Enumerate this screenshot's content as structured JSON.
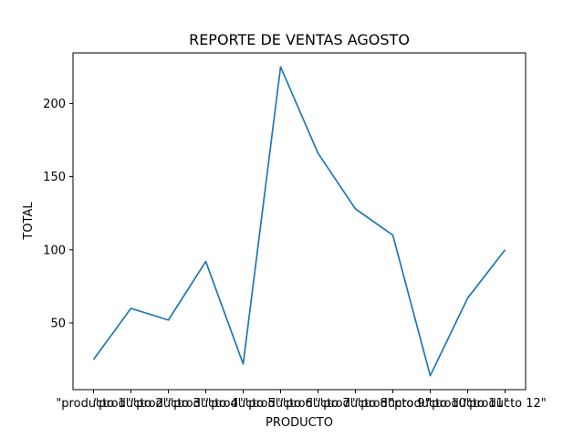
{
  "chart_data": {
    "type": "line",
    "title": "REPORTE DE VENTAS AGOSTO",
    "xlabel": "PRODUCTO",
    "ylabel": "TOTAL",
    "categories": [
      "\"producto 1\"",
      "\"producto 2\"",
      "\"producto 3\"",
      "\"producto 4\"",
      "\"producto 5\"",
      "\"producto 6\"",
      "\"producto 7\"",
      "\"producto 8\"",
      "\"producto 9\"",
      "\"producto 10\"",
      "\"producto 11\"",
      "\"producto 12\""
    ],
    "values": [
      25,
      60,
      52,
      92,
      22,
      225,
      166,
      128,
      110,
      14,
      67,
      100
    ],
    "yticks": [
      50,
      100,
      150,
      200
    ],
    "ylim": [
      4.45,
      234.55
    ],
    "grid": false,
    "line_color": "#1f77b4"
  }
}
